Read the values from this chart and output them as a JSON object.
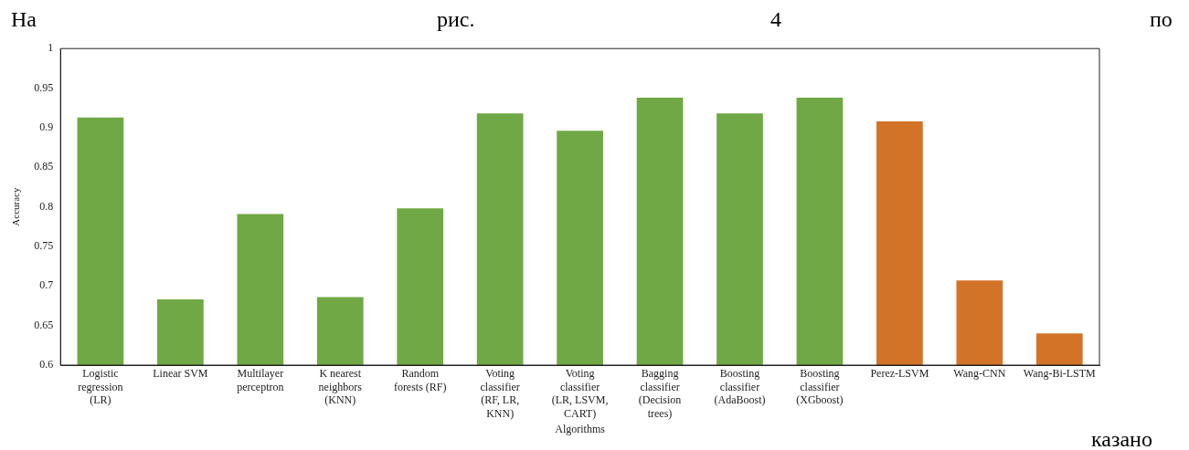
{
  "chart_data": {
    "type": "bar",
    "xlabel": "Algorithms",
    "ylabel": "Accuracy",
    "categories": [
      "Logistic regression (LR)",
      "Linear SVM",
      "Multilayer perceptron",
      "K nearest neighbors (KNN)",
      "Random forests (RF)",
      "Voting classifier (RF, LR, KNN)",
      "Voting classifier (LR, LSVM, CART)",
      "Bagging classifier (Decision trees)",
      "Boosting classifier (AdaBoost)",
      "Boosting classifier (XGboost)",
      "Perez-LSVM",
      "Wang-CNN",
      "Wang-Bi-LSTM"
    ],
    "values": [
      0.913,
      0.683,
      0.791,
      0.686,
      0.798,
      0.918,
      0.896,
      0.938,
      0.918,
      0.938,
      0.908,
      0.707,
      0.64
    ],
    "colors": [
      "#70a846",
      "#70a846",
      "#70a846",
      "#70a846",
      "#70a846",
      "#70a846",
      "#70a846",
      "#70a846",
      "#70a846",
      "#70a846",
      "#d37328",
      "#d37328",
      "#d37328"
    ],
    "ylim": [
      0.6,
      1
    ],
    "yticks": [
      0.6,
      0.65,
      0.7,
      0.75,
      0.8,
      0.85,
      0.9,
      0.95,
      1
    ],
    "grid": false,
    "legend": false,
    "annotations": [
      "На",
      "рис.",
      "4",
      "по",
      "казано"
    ]
  }
}
